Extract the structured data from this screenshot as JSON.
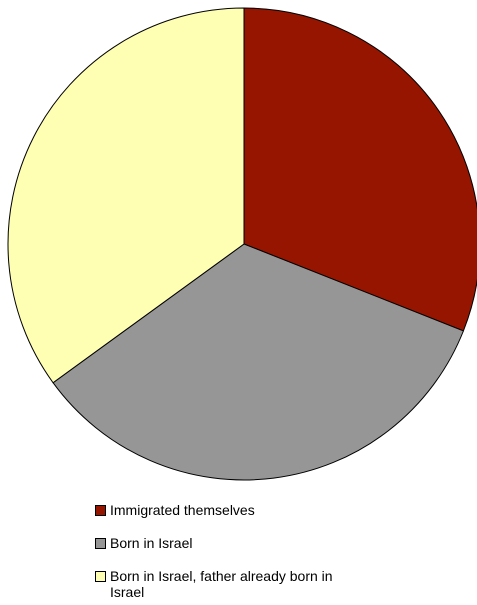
{
  "chart_data": {
    "type": "pie",
    "categories": [
      "Immigrated themselves",
      "Born in Israel",
      "Born in Israel, father already born in Israel"
    ],
    "values": [
      31,
      34,
      35
    ],
    "colors": [
      "#951500",
      "#969696",
      "#ffffb3"
    ]
  }
}
